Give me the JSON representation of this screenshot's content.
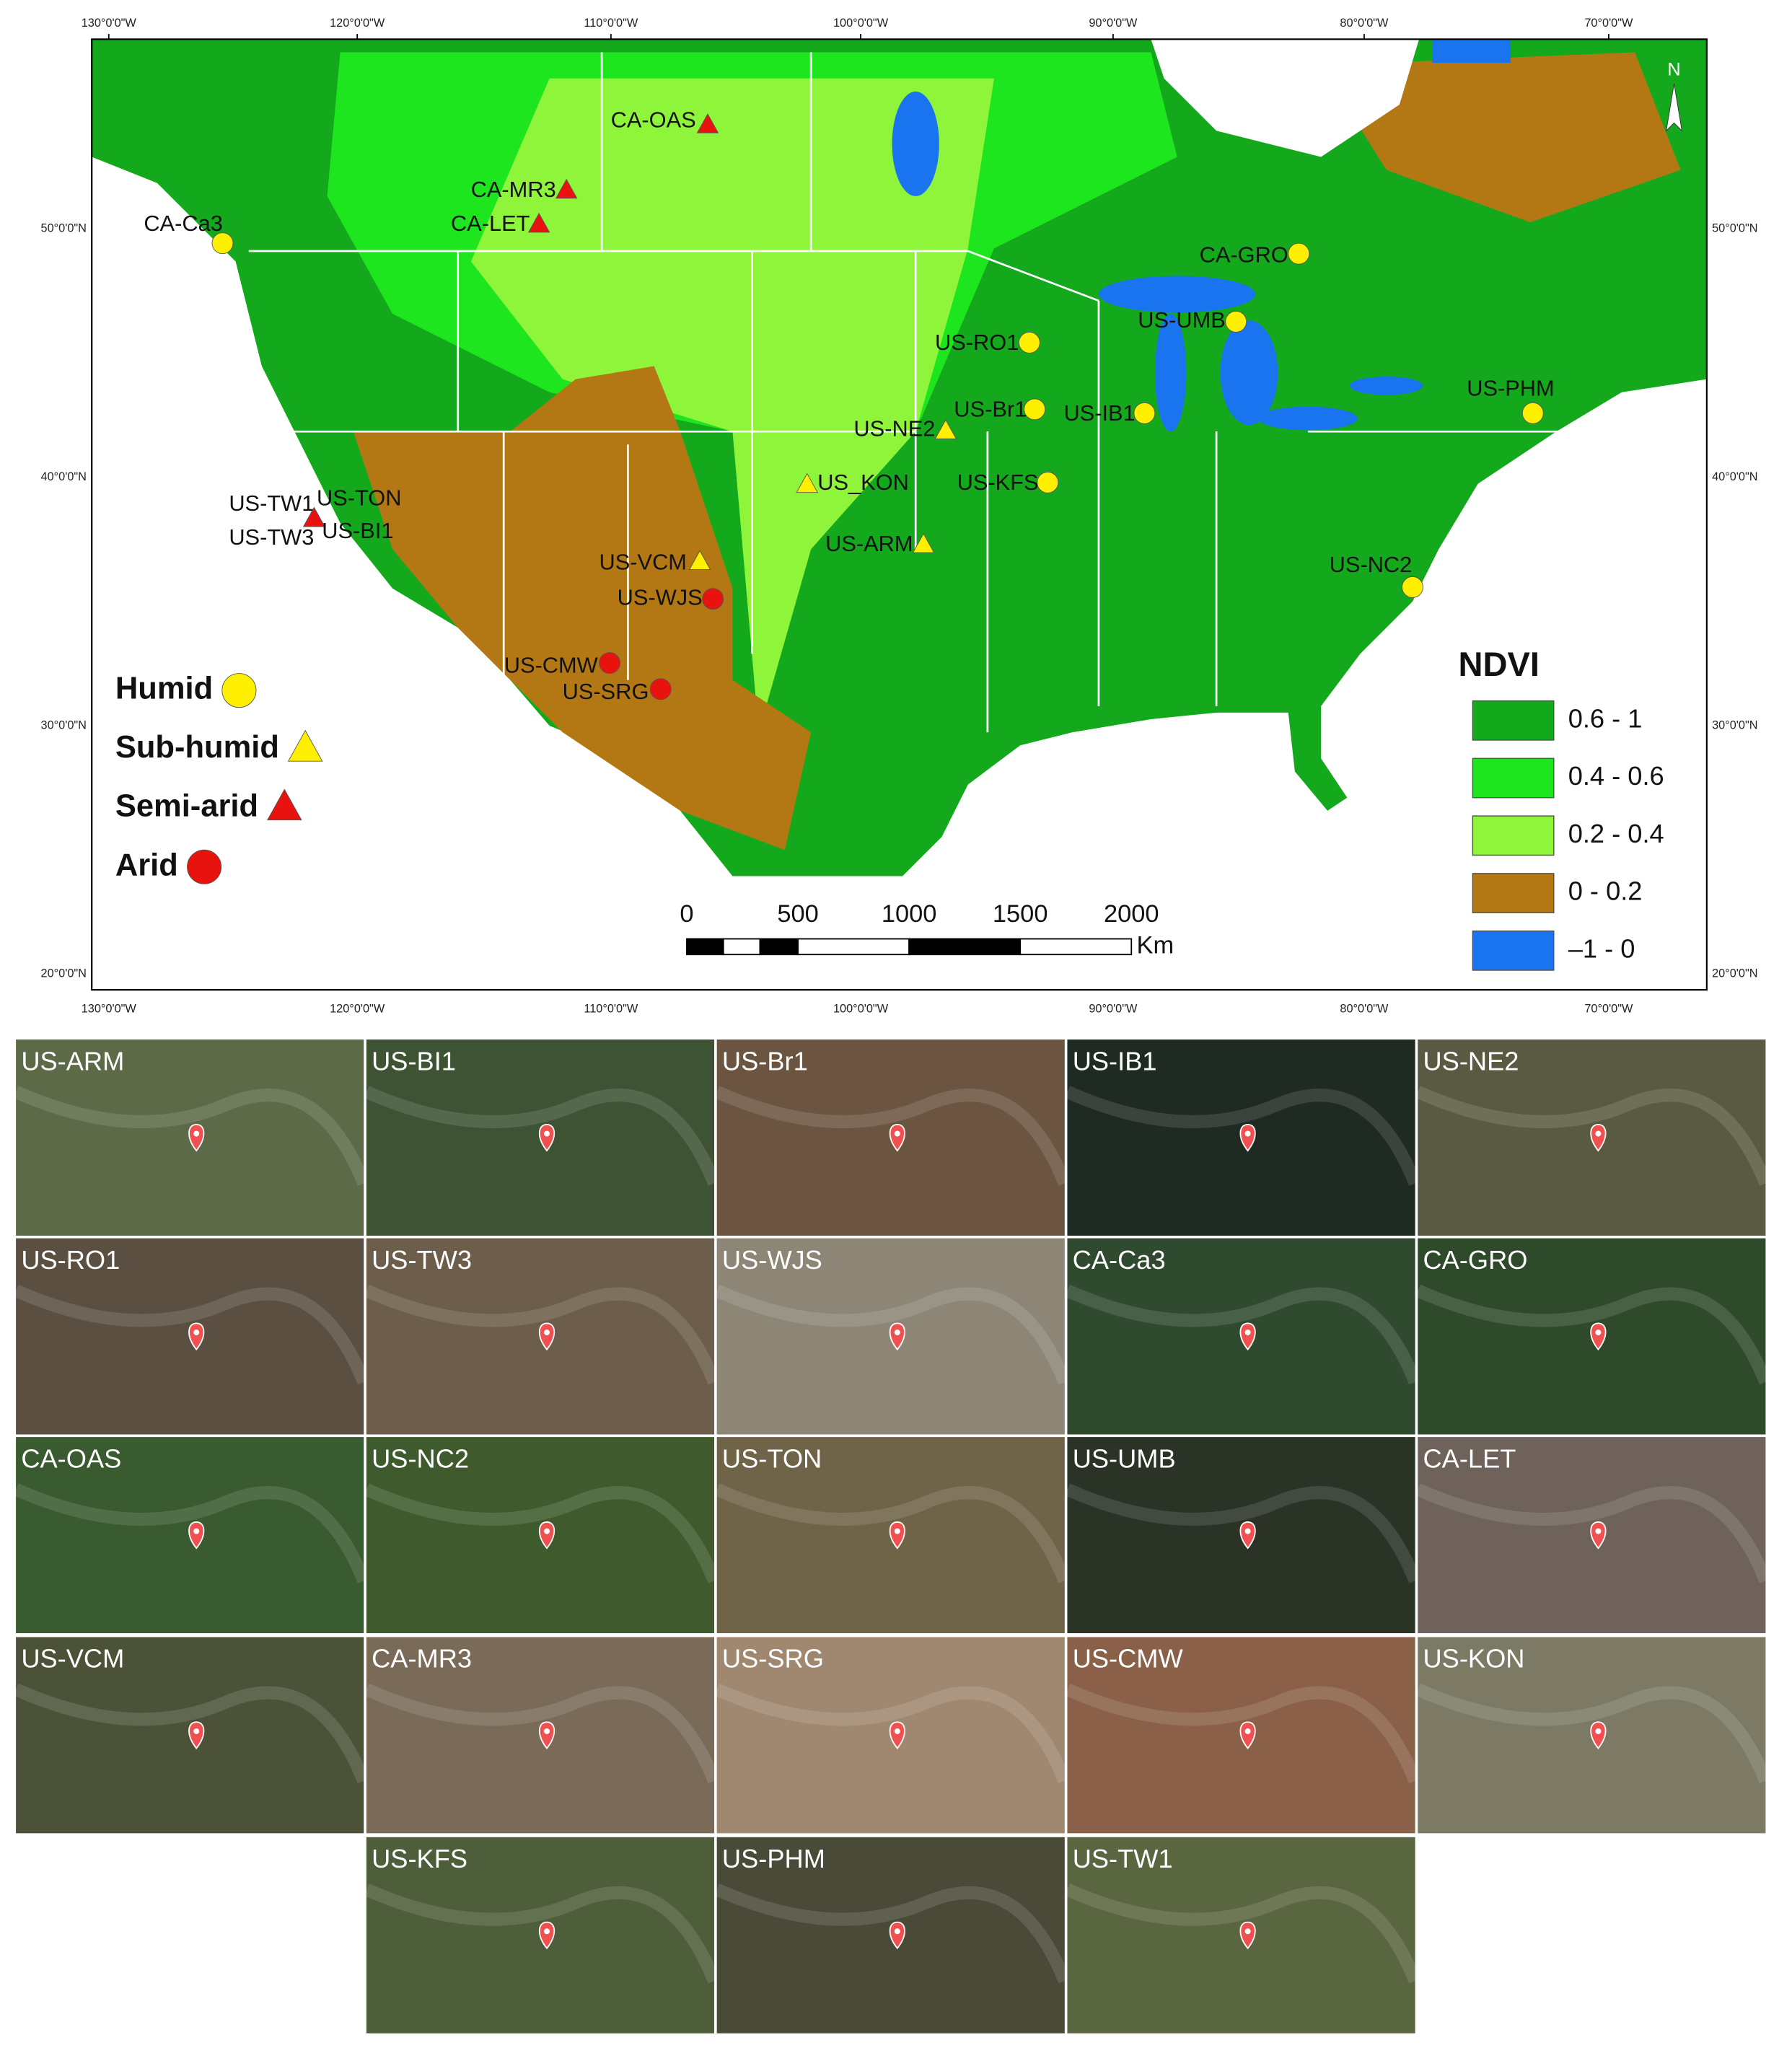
{
  "map": {
    "graticule": {
      "lon": [
        "130°0'0\"W",
        "120°0'0\"W",
        "110°0'0\"W",
        "100°0'0\"W",
        "90°0'0\"W",
        "80°0'0\"W",
        "70°0'0\"W"
      ],
      "lat": [
        "50°0'0\"N",
        "40°0'0\"N",
        "30°0'0\"N",
        "20°0'0\"N"
      ]
    },
    "north": "N",
    "sites": [
      {
        "label": "CA-OAS",
        "class": "Semi-arid"
      },
      {
        "label": "CA-MR3",
        "class": "Semi-arid"
      },
      {
        "label": "CA-LET",
        "class": "Semi-arid"
      },
      {
        "label": "CA-Ca3",
        "class": "Humid"
      },
      {
        "label": "CA-GRO",
        "class": "Humid"
      },
      {
        "label": "US-UMB",
        "class": "Humid"
      },
      {
        "label": "US-RO1",
        "class": "Humid"
      },
      {
        "label": "US-Br1",
        "class": "Humid"
      },
      {
        "label": "US-IB1",
        "class": "Humid"
      },
      {
        "label": "US-PHM",
        "class": "Humid"
      },
      {
        "label": "US-NE2",
        "class": "Sub-humid"
      },
      {
        "label": "US_KON",
        "class": "Sub-humid"
      },
      {
        "label": "US-KFS",
        "class": "Humid"
      },
      {
        "label": "US-ARM",
        "class": "Sub-humid"
      },
      {
        "label": "US-NC2",
        "class": "Humid"
      },
      {
        "label": "US-TW1",
        "class": "Semi-arid"
      },
      {
        "label": "US-TON",
        "class": "Semi-arid"
      },
      {
        "label": "US-TW3",
        "class": "Semi-arid"
      },
      {
        "label": "US-BI1",
        "class": "Semi-arid"
      },
      {
        "label": "US-VCM",
        "class": "Sub-humid"
      },
      {
        "label": "US-WJS",
        "class": "Arid"
      },
      {
        "label": "US-CMW",
        "class": "Arid"
      },
      {
        "label": "US-SRG",
        "class": "Arid"
      }
    ],
    "climate_legend": [
      {
        "label": "Humid",
        "color": "#ffef00",
        "shape": "circle"
      },
      {
        "label": "Sub-humid",
        "color": "#ffef00",
        "shape": "triangle"
      },
      {
        "label": "Semi-arid",
        "color": "#e8130e",
        "shape": "triangle"
      },
      {
        "label": "Arid",
        "color": "#e8130e",
        "shape": "circle"
      }
    ],
    "ndvi_legend": {
      "title": "NDVI",
      "entries": [
        {
          "label": "0.6 - 1",
          "color": "#14a81c"
        },
        {
          "label": "0.4 - 0.6",
          "color": "#1ee61e"
        },
        {
          "label": "0.2 - 0.4",
          "color": "#8ef53a"
        },
        {
          "label": "0 - 0.2",
          "color": "#b37814"
        },
        {
          "label": "–1 - 0",
          "color": "#1a74ef"
        }
      ]
    },
    "scale_bar": {
      "labels": [
        "0",
        "500",
        "1000",
        "1500",
        "2000"
      ],
      "unit": "Km"
    }
  },
  "thumbnails": [
    "US-ARM",
    "US-BI1",
    "US-Br1",
    "US-IB1",
    "US-NE2",
    "US-RO1",
    "US-TW3",
    "US-WJS",
    "CA-Ca3",
    "CA-GRO",
    "CA-OAS",
    "US-NC2",
    "US-TON",
    "US-UMB",
    "CA-LET",
    "US-VCM",
    "CA-MR3",
    "US-SRG",
    "US-CMW",
    "US-KON",
    "US-KFS",
    "US-PHM",
    "US-TW1"
  ]
}
